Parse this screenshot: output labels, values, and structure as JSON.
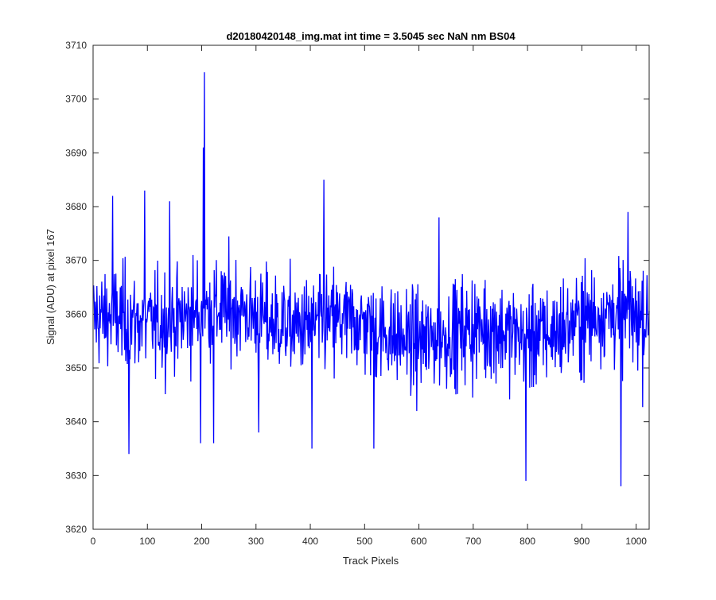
{
  "chart_data": {
    "type": "line",
    "title": "d20180420148_img.mat int time = 3.5045 sec  NaN nm BS04",
    "xlabel": "Track Pixels",
    "ylabel": "Signal (ADU) at pixel 167",
    "xlim": [
      0,
      1024
    ],
    "ylim": [
      3620,
      3710
    ],
    "x_ticks": [
      0,
      100,
      200,
      300,
      400,
      500,
      600,
      700,
      800,
      900,
      1000
    ],
    "y_ticks": [
      3620,
      3630,
      3640,
      3650,
      3660,
      3670,
      3680,
      3690,
      3700,
      3710
    ],
    "grid": false,
    "box": true,
    "series": [
      {
        "color": "#0000ff",
        "x_start": 1,
        "x_step": 1,
        "mean": 3658,
        "noise_amplitude": 7,
        "n_points": 1024,
        "notable_points": [
          {
            "x": 36,
            "y": 3682
          },
          {
            "x": 66,
            "y": 3634
          },
          {
            "x": 95,
            "y": 3683
          },
          {
            "x": 141,
            "y": 3681
          },
          {
            "x": 198,
            "y": 3636
          },
          {
            "x": 203,
            "y": 3691
          },
          {
            "x": 205,
            "y": 3705
          },
          {
            "x": 222,
            "y": 3636
          },
          {
            "x": 305,
            "y": 3638
          },
          {
            "x": 403,
            "y": 3635
          },
          {
            "x": 425,
            "y": 3685
          },
          {
            "x": 517,
            "y": 3635
          },
          {
            "x": 637,
            "y": 3678
          },
          {
            "x": 797,
            "y": 3629
          },
          {
            "x": 972,
            "y": 3628
          },
          {
            "x": 985,
            "y": 3679
          }
        ]
      }
    ]
  }
}
